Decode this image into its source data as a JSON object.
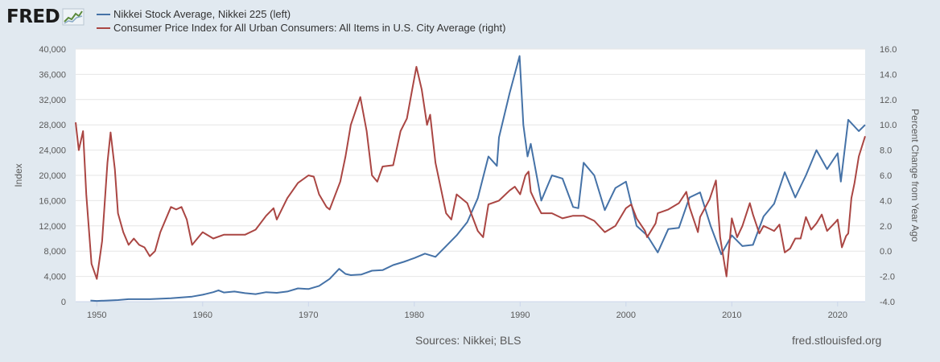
{
  "logo": {
    "text": "FRED",
    "icon": "chart-line-icon"
  },
  "legend": [
    {
      "label": "Nikkei Stock Average, Nikkei 225 (left)",
      "color": "#4572a7"
    },
    {
      "label": "Consumer Price Index for All Urban Consumers: All Items in U.S. City Average (right)",
      "color": "#aa4643"
    }
  ],
  "footer": {
    "sources": "Sources: Nikkei; BLS",
    "site": "fred.stlouisfed.org"
  },
  "chart_data": {
    "type": "line",
    "xlim": [
      1948,
      2022.6
    ],
    "x_ticks": [
      1950,
      1960,
      1970,
      1980,
      1990,
      2000,
      2010,
      2020
    ],
    "left_axis": {
      "label": "Index",
      "range": [
        0,
        40000
      ],
      "ticks": [
        "0",
        "4,000",
        "8,000",
        "12,000",
        "16,000",
        "20,000",
        "24,000",
        "28,000",
        "32,000",
        "36,000",
        "40,000"
      ]
    },
    "right_axis": {
      "label": "Percent Change from Year Ago",
      "range": [
        -4.0,
        16.0
      ],
      "ticks": [
        "-4.0",
        "-2.0",
        "0.0",
        "2.0",
        "4.0",
        "6.0",
        "8.0",
        "10.0",
        "12.0",
        "14.0",
        "16.0"
      ]
    },
    "grid": true,
    "series": [
      {
        "name": "Nikkei Stock Average, Nikkei 225 (left)",
        "axis": "left",
        "color": "#4572a7",
        "points": [
          [
            1949.4,
            180
          ],
          [
            1950,
            110
          ],
          [
            1952,
            250
          ],
          [
            1953,
            400
          ],
          [
            1955,
            400
          ],
          [
            1957,
            550
          ],
          [
            1959,
            800
          ],
          [
            1960,
            1100
          ],
          [
            1961,
            1500
          ],
          [
            1961.5,
            1800
          ],
          [
            1962,
            1450
          ],
          [
            1963,
            1600
          ],
          [
            1964,
            1350
          ],
          [
            1965,
            1200
          ],
          [
            1966,
            1500
          ],
          [
            1967,
            1400
          ],
          [
            1968,
            1600
          ],
          [
            1969,
            2100
          ],
          [
            1970,
            2000
          ],
          [
            1971,
            2500
          ],
          [
            1972,
            3600
          ],
          [
            1972.9,
            5200
          ],
          [
            1973.5,
            4400
          ],
          [
            1974,
            4200
          ],
          [
            1975,
            4300
          ],
          [
            1976,
            4900
          ],
          [
            1977,
            5000
          ],
          [
            1978,
            5800
          ],
          [
            1979,
            6300
          ],
          [
            1980,
            6900
          ],
          [
            1981,
            7600
          ],
          [
            1982,
            7100
          ],
          [
            1983,
            8800
          ],
          [
            1984,
            10500
          ],
          [
            1985,
            12600
          ],
          [
            1986,
            16400
          ],
          [
            1987,
            23000
          ],
          [
            1987.8,
            21500
          ],
          [
            1988,
            26000
          ],
          [
            1989,
            33000
          ],
          [
            1989.95,
            38900
          ],
          [
            1990.3,
            28000
          ],
          [
            1990.7,
            23000
          ],
          [
            1991,
            25000
          ],
          [
            1992,
            16000
          ],
          [
            1993,
            20000
          ],
          [
            1994,
            19500
          ],
          [
            1995,
            15000
          ],
          [
            1995.5,
            14800
          ],
          [
            1996,
            22000
          ],
          [
            1997,
            20000
          ],
          [
            1998,
            14500
          ],
          [
            1999,
            18000
          ],
          [
            2000,
            19000
          ],
          [
            2001,
            12000
          ],
          [
            2002,
            10500
          ],
          [
            2003,
            7800
          ],
          [
            2004,
            11500
          ],
          [
            2005,
            11700
          ],
          [
            2006,
            16500
          ],
          [
            2007,
            17300
          ],
          [
            2008,
            12000
          ],
          [
            2009,
            7500
          ],
          [
            2010,
            10500
          ],
          [
            2011,
            8800
          ],
          [
            2012,
            9000
          ],
          [
            2013,
            13500
          ],
          [
            2014,
            15500
          ],
          [
            2015,
            20500
          ],
          [
            2016,
            16500
          ],
          [
            2017,
            20000
          ],
          [
            2018,
            24000
          ],
          [
            2019,
            21000
          ],
          [
            2020,
            23500
          ],
          [
            2020.3,
            19000
          ],
          [
            2021,
            28800
          ],
          [
            2022,
            27000
          ],
          [
            2022.6,
            28000
          ]
        ]
      },
      {
        "name": "Consumer Price Index for All Urban Consumers: All Items in U.S. City Average (right)",
        "axis": "right",
        "color": "#aa4643",
        "points": [
          [
            1948,
            10.2
          ],
          [
            1948.3,
            8
          ],
          [
            1948.7,
            9.5
          ],
          [
            1949,
            4.5
          ],
          [
            1949.5,
            -1
          ],
          [
            1950,
            -2.2
          ],
          [
            1950.5,
            0.8
          ],
          [
            1951,
            7
          ],
          [
            1951.3,
            9.4
          ],
          [
            1951.7,
            6.5
          ],
          [
            1952,
            3
          ],
          [
            1952.5,
            1.5
          ],
          [
            1953,
            0.5
          ],
          [
            1953.5,
            1
          ],
          [
            1954,
            0.5
          ],
          [
            1954.5,
            0.3
          ],
          [
            1955,
            -0.4
          ],
          [
            1955.5,
            0
          ],
          [
            1956,
            1.5
          ],
          [
            1957,
            3.5
          ],
          [
            1957.5,
            3.3
          ],
          [
            1958,
            3.5
          ],
          [
            1958.5,
            2.5
          ],
          [
            1959,
            0.5
          ],
          [
            1959.5,
            1
          ],
          [
            1960,
            1.5
          ],
          [
            1961,
            1
          ],
          [
            1962,
            1.3
          ],
          [
            1963,
            1.3
          ],
          [
            1964,
            1.3
          ],
          [
            1965,
            1.7
          ],
          [
            1966,
            2.8
          ],
          [
            1966.7,
            3.4
          ],
          [
            1967,
            2.5
          ],
          [
            1968,
            4.2
          ],
          [
            1969,
            5.4
          ],
          [
            1970,
            6
          ],
          [
            1970.5,
            5.9
          ],
          [
            1971,
            4.5
          ],
          [
            1971.7,
            3.5
          ],
          [
            1972,
            3.3
          ],
          [
            1973,
            5.5
          ],
          [
            1973.5,
            7.5
          ],
          [
            1974,
            10
          ],
          [
            1974.9,
            12.2
          ],
          [
            1975.5,
            9.5
          ],
          [
            1976,
            6
          ],
          [
            1976.5,
            5.5
          ],
          [
            1977,
            6.7
          ],
          [
            1978,
            6.8
          ],
          [
            1978.7,
            9.5
          ],
          [
            1979.3,
            10.5
          ],
          [
            1979.8,
            12.8
          ],
          [
            1980.2,
            14.6
          ],
          [
            1980.7,
            12.8
          ],
          [
            1981.2,
            10
          ],
          [
            1981.5,
            10.8
          ],
          [
            1982,
            7
          ],
          [
            1982.5,
            5
          ],
          [
            1983,
            3
          ],
          [
            1983.5,
            2.5
          ],
          [
            1984,
            4.5
          ],
          [
            1985,
            3.8
          ],
          [
            1986,
            1.6
          ],
          [
            1986.5,
            1.1
          ],
          [
            1987,
            3.7
          ],
          [
            1988,
            4
          ],
          [
            1989,
            4.8
          ],
          [
            1989.5,
            5.1
          ],
          [
            1990,
            4.5
          ],
          [
            1990.5,
            6
          ],
          [
            1990.8,
            6.3
          ],
          [
            1991,
            4.7
          ],
          [
            1991.5,
            3.8
          ],
          [
            1992,
            3
          ],
          [
            1993,
            3
          ],
          [
            1994,
            2.6
          ],
          [
            1995,
            2.8
          ],
          [
            1996,
            2.8
          ],
          [
            1997,
            2.4
          ],
          [
            1998,
            1.5
          ],
          [
            1999,
            2
          ],
          [
            2000,
            3.4
          ],
          [
            2000.5,
            3.7
          ],
          [
            2001,
            2.6
          ],
          [
            2001.8,
            1.6
          ],
          [
            2002,
            1.1
          ],
          [
            2002.8,
            2.2
          ],
          [
            2003,
            3
          ],
          [
            2004,
            3.3
          ],
          [
            2005,
            3.8
          ],
          [
            2005.7,
            4.7
          ],
          [
            2006,
            3.5
          ],
          [
            2006.8,
            1.5
          ],
          [
            2007,
            2.7
          ],
          [
            2007.9,
            4.1
          ],
          [
            2008.5,
            5.6
          ],
          [
            2008.9,
            1.1
          ],
          [
            2009.5,
            -2
          ],
          [
            2010,
            2.6
          ],
          [
            2010.5,
            1.1
          ],
          [
            2011,
            2
          ],
          [
            2011.7,
            3.8
          ],
          [
            2012,
            2.9
          ],
          [
            2012.6,
            1.4
          ],
          [
            2013,
            2
          ],
          [
            2013.5,
            1.8
          ],
          [
            2014,
            1.6
          ],
          [
            2014.5,
            2.1
          ],
          [
            2015,
            -0.1
          ],
          [
            2015.5,
            0.2
          ],
          [
            2016,
            1
          ],
          [
            2016.5,
            1
          ],
          [
            2017,
            2.7
          ],
          [
            2017.5,
            1.7
          ],
          [
            2018,
            2.2
          ],
          [
            2018.5,
            2.9
          ],
          [
            2019,
            1.6
          ],
          [
            2019.8,
            2.3
          ],
          [
            2020,
            2.5
          ],
          [
            2020.4,
            0.3
          ],
          [
            2020.8,
            1.2
          ],
          [
            2021,
            1.4
          ],
          [
            2021.3,
            4.2
          ],
          [
            2021.6,
            5.4
          ],
          [
            2022,
            7.5
          ],
          [
            2022.6,
            9.1
          ]
        ]
      }
    ]
  }
}
